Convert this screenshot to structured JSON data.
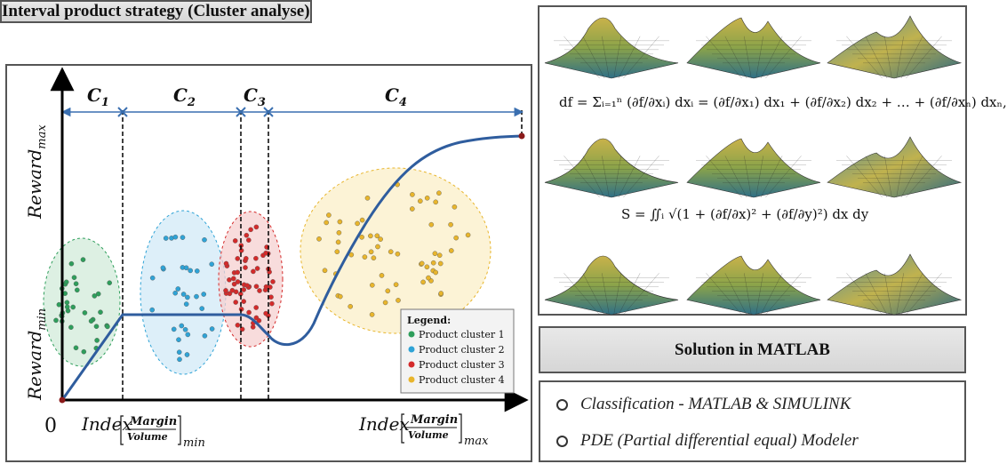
{
  "left_panel": {
    "title": "Interval product strategy (Cluster analyse)",
    "diagram": {
      "segments": [
        {
          "label": "C",
          "sub": "1"
        },
        {
          "label": "C",
          "sub": "2"
        },
        {
          "label": "C",
          "sub": "3"
        },
        {
          "label": "C",
          "sub": "4"
        }
      ],
      "y_label_max": {
        "main": "Reward",
        "sub": "max"
      },
      "y_label_min": {
        "main": "Reward",
        "sub": "min"
      },
      "origin_label": "0",
      "x_label_min": {
        "main": "Index",
        "num": "Margin",
        "den": "Volume",
        "sub": "min"
      },
      "x_label_max": {
        "main": "Index",
        "num": "Margin",
        "den": "Volume",
        "sub": "max"
      },
      "legend": {
        "title": "Legend",
        "items": [
          {
            "label": "Product cluster 1",
            "color": "#2e9e5b"
          },
          {
            "label": "Product cluster 2",
            "color": "#2fa3d6"
          },
          {
            "label": "Product cluster 3",
            "color": "#d42a2a"
          },
          {
            "label": "Product cluster 4",
            "color": "#e8b52c"
          }
        ]
      }
    }
  },
  "right_panel": {
    "equation_1": "df = Σᵢ₌₁ⁿ (∂f/∂xᵢ) dxᵢ = (∂f/∂x₁) dx₁ + (∂f/∂x₂) dx₂ + … + (∂f/∂xₙ) dxₙ,",
    "equation_2": "S = ∬ᵢ √(1 + (∂f/∂x)² + (∂f/∂y)²) dx dy",
    "solution_title": "Solution in MATLAB",
    "bullets": [
      "Classification - MATLAB & SIMULINK",
      "PDE (Partial differential equal) Modeler"
    ]
  }
}
